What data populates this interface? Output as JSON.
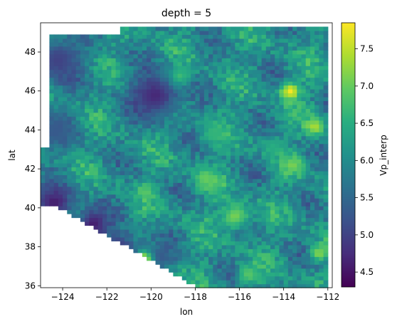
{
  "chart_data": {
    "type": "heatmap",
    "title": "depth = 5",
    "xlabel": "lon",
    "ylabel": "lat",
    "colorbar_label": "Vp_interp",
    "colormap": "viridis",
    "xlim": [
      -125,
      -111.8
    ],
    "ylim": [
      35.9,
      49.5
    ],
    "x_ticks": [
      -124,
      -122,
      -120,
      -118,
      -116,
      -114,
      -112
    ],
    "x_tick_labels": [
      "−124",
      "−122",
      "−120",
      "−118",
      "−116",
      "−114",
      "−112"
    ],
    "y_ticks": [
      36,
      38,
      40,
      42,
      44,
      46,
      48
    ],
    "y_tick_labels": [
      "36",
      "38",
      "40",
      "42",
      "44",
      "46",
      "48"
    ],
    "color_range": [
      4.3,
      7.85
    ],
    "colorbar_ticks": [
      4.5,
      5.0,
      5.5,
      6.0,
      6.5,
      7.0,
      7.5
    ],
    "colorbar_tick_labels": [
      "4.5",
      "5.0",
      "5.5",
      "6.0",
      "6.5",
      "7.0",
      "7.5"
    ],
    "grid_resolution_deg": 0.2,
    "background_value": 6.05,
    "hotspots": [
      {
        "lon": -124.2,
        "lat": 47.6,
        "radius": 1.2,
        "value": 5.0
      },
      {
        "lon": -119.8,
        "lat": 45.8,
        "radius": 1.2,
        "value": 4.7
      },
      {
        "lon": -124.4,
        "lat": 40.3,
        "radius": 0.9,
        "value": 4.6
      },
      {
        "lon": -122.6,
        "lat": 39.2,
        "radius": 0.8,
        "value": 4.6
      },
      {
        "lon": -121.4,
        "lat": 37.8,
        "radius": 0.9,
        "value": 4.7
      },
      {
        "lon": -124.3,
        "lat": 44.0,
        "radius": 1.0,
        "value": 5.3
      },
      {
        "lon": -119.6,
        "lat": 37.5,
        "radius": 0.7,
        "value": 5.3
      },
      {
        "lon": -113.7,
        "lat": 46.0,
        "radius": 0.45,
        "value": 7.8
      },
      {
        "lon": -112.6,
        "lat": 44.2,
        "radius": 0.45,
        "value": 7.4
      },
      {
        "lon": -116.2,
        "lat": 39.6,
        "radius": 0.7,
        "value": 7.1
      },
      {
        "lon": -117.5,
        "lat": 41.5,
        "radius": 0.6,
        "value": 7.0
      },
      {
        "lon": -113.6,
        "lat": 42.2,
        "radius": 0.5,
        "value": 7.1
      },
      {
        "lon": -120.3,
        "lat": 37.4,
        "radius": 0.35,
        "value": 7.5
      },
      {
        "lon": -112.4,
        "lat": 37.7,
        "radius": 0.4,
        "value": 7.2
      },
      {
        "lon": -115.6,
        "lat": 36.6,
        "radius": 0.5,
        "value": 6.9
      },
      {
        "lon": -118.7,
        "lat": 46.8,
        "radius": 0.5,
        "value": 6.7
      },
      {
        "lon": -120.2,
        "lat": 40.8,
        "radius": 0.4,
        "value": 6.9
      },
      {
        "lon": -117.2,
        "lat": 43.8,
        "radius": 0.6,
        "value": 6.6
      },
      {
        "lon": -114.5,
        "lat": 43.2,
        "radius": 0.5,
        "value": 6.5
      }
    ]
  }
}
